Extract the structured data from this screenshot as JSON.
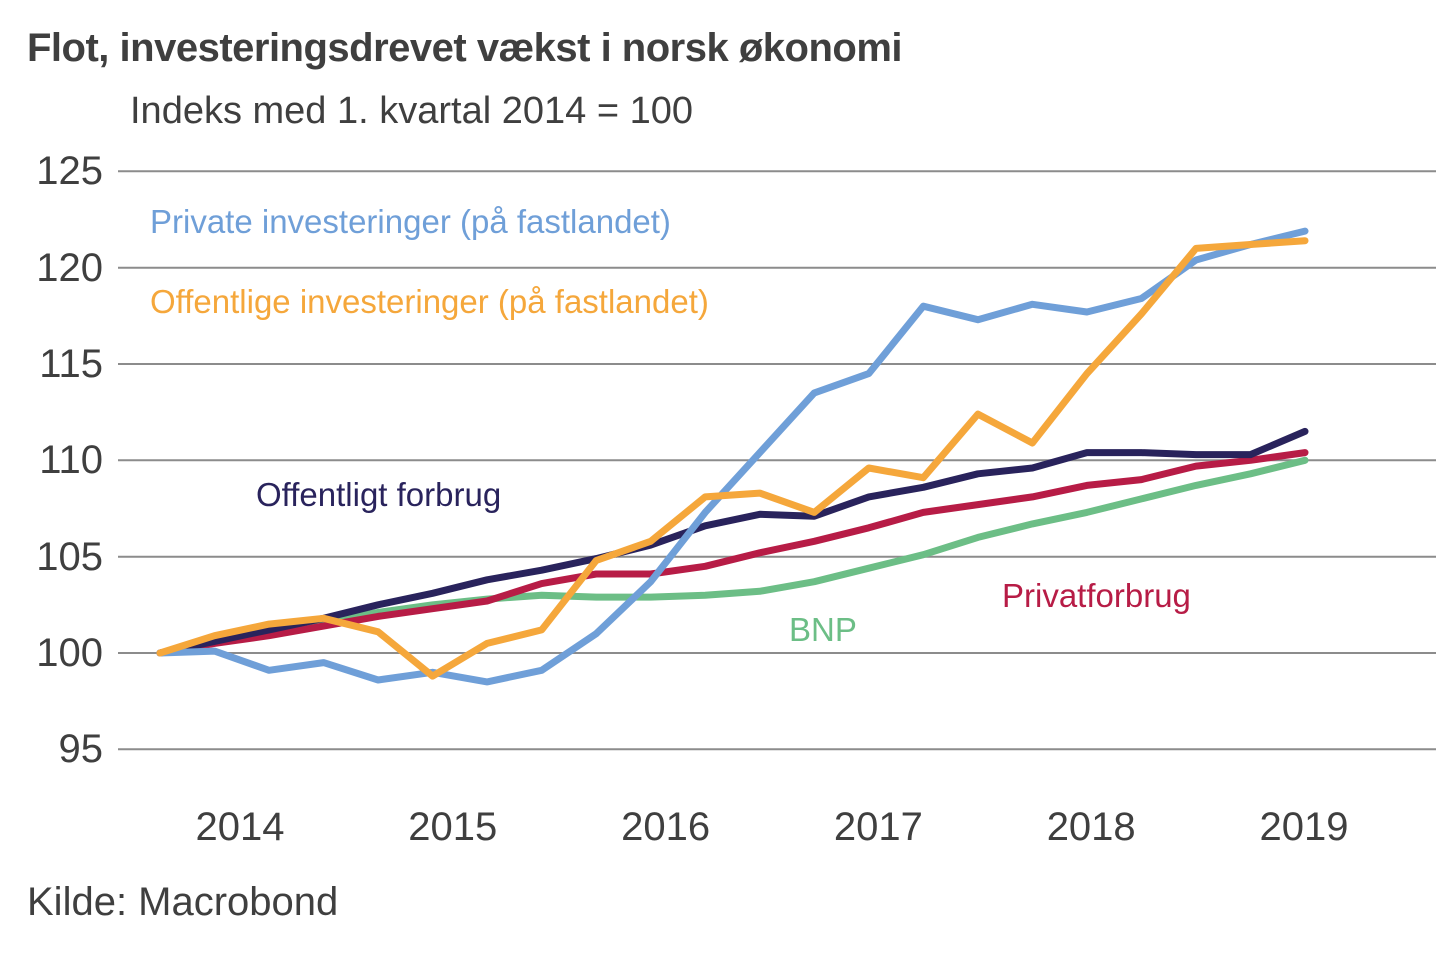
{
  "title": "Flot, investeringsdrevet vækst i norsk økonomi",
  "subtitle": "Indeks med 1. kvartal 2014 = 100",
  "source": "Kilde: Macrobond",
  "colors": {
    "text": "#3F3F3F",
    "grid": "#8C8C8C",
    "background": "#FFFFFF"
  },
  "chart_data": {
    "type": "line",
    "title": "Flot, investeringsdrevet vækst i norsk økonomi",
    "subtitle": "Indeks med 1. kvartal 2014 = 100",
    "xlabel": "",
    "ylabel": "Indeks, 1. kvartal 2014 = 100",
    "grid": "horizontal",
    "legend_position": "labels-on-chart",
    "ylim": [
      93.5,
      126.5
    ],
    "yticks": [
      95,
      100,
      105,
      110,
      115,
      120,
      125
    ],
    "xticks": [
      "2014",
      "2015",
      "2016",
      "2017",
      "2018",
      "2019"
    ],
    "categories": [
      "2014 Q1",
      "2014 Q2",
      "2014 Q3",
      "2014 Q4",
      "2015 Q1",
      "2015 Q2",
      "2015 Q3",
      "2015 Q4",
      "2016 Q1",
      "2016 Q2",
      "2016 Q3",
      "2016 Q4",
      "2017 Q1",
      "2017 Q2",
      "2017 Q3",
      "2017 Q4",
      "2018 Q1",
      "2018 Q2",
      "2018 Q3",
      "2018 Q4",
      "2019 Q1",
      "2019 Q2"
    ],
    "series": [
      {
        "name": "Private investeringer (på fastlandet)",
        "slug": "private-investeringer",
        "color": "#6F9FD8",
        "values": [
          100,
          100.1,
          99.1,
          99.5,
          98.6,
          99.0,
          98.5,
          99.1,
          101.0,
          103.7,
          107.3,
          110.4,
          113.5,
          114.5,
          118.0,
          117.3,
          118.1,
          117.7,
          118.4,
          120.4,
          121.2,
          121.9
        ]
      },
      {
        "name": "Offentlige investeringer (på fastlandet)",
        "slug": "offentlige-investeringer",
        "color": "#F5A73B",
        "values": [
          100,
          100.9,
          101.5,
          101.8,
          101.1,
          98.8,
          100.5,
          101.2,
          104.8,
          105.8,
          108.1,
          108.3,
          107.3,
          109.6,
          109.1,
          112.4,
          110.9,
          114.5,
          117.6,
          121.0,
          121.2,
          121.4
        ]
      },
      {
        "name": "Offentligt forbrug",
        "slug": "offentligt-forbrug",
        "color": "#29235C",
        "values": [
          100,
          100.6,
          101.2,
          101.8,
          102.5,
          103.1,
          103.8,
          104.3,
          104.9,
          105.6,
          106.6,
          107.2,
          107.1,
          108.1,
          108.6,
          109.3,
          109.6,
          110.4,
          110.4,
          110.3,
          110.3,
          111.5
        ]
      },
      {
        "name": "Privatforbrug",
        "slug": "privatforbrug",
        "color": "#B71C46",
        "values": [
          100,
          100.5,
          100.9,
          101.4,
          101.9,
          102.3,
          102.7,
          103.6,
          104.1,
          104.1,
          104.5,
          105.2,
          105.8,
          106.5,
          107.3,
          107.7,
          108.1,
          108.7,
          109.0,
          109.7,
          110.0,
          110.4
        ]
      },
      {
        "name": "BNP",
        "slug": "bnp",
        "color": "#6CBE86",
        "values": [
          100,
          100.6,
          101.0,
          101.6,
          102.1,
          102.5,
          102.8,
          103.0,
          102.9,
          102.9,
          103.0,
          103.2,
          103.7,
          104.4,
          105.1,
          106.0,
          106.7,
          107.3,
          108.0,
          108.7,
          109.3,
          110.0
        ]
      }
    ]
  }
}
